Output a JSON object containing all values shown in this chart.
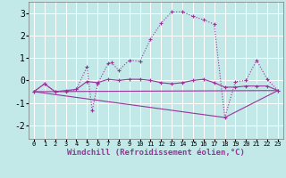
{
  "xlabel": "Windchill (Refroidissement éolien,°C)",
  "background_color": "#c2e8e8",
  "grid_color": "#ffffff",
  "line_color": "#993399",
  "xlim": [
    -0.5,
    23.5
  ],
  "ylim": [
    -2.6,
    3.5
  ],
  "yticks": [
    -2,
    -1,
    0,
    1,
    2,
    3
  ],
  "series1_x": [
    0,
    1,
    2,
    3,
    4,
    5,
    5.5,
    6,
    7,
    7.3,
    8,
    9,
    10,
    11,
    12,
    13,
    14,
    15,
    16,
    17,
    18,
    19,
    20,
    21,
    22,
    23
  ],
  "series1_y": [
    -0.5,
    -0.15,
    -0.5,
    -0.5,
    -0.4,
    0.6,
    -1.35,
    -0.15,
    0.75,
    0.8,
    0.45,
    0.9,
    0.85,
    1.85,
    2.55,
    3.05,
    3.05,
    2.85,
    2.7,
    2.5,
    -1.65,
    -0.05,
    0.0,
    0.9,
    0.05,
    -0.45
  ],
  "series2_x": [
    0,
    1,
    2,
    3,
    4,
    5,
    6,
    7,
    8,
    9,
    10,
    11,
    12,
    13,
    14,
    15,
    16,
    17,
    18,
    19,
    20,
    21,
    22,
    23
  ],
  "series2_y": [
    -0.5,
    -0.15,
    -0.5,
    -0.45,
    -0.4,
    -0.05,
    -0.1,
    0.05,
    0.0,
    0.05,
    0.05,
    0.0,
    -0.1,
    -0.15,
    -0.1,
    0.0,
    0.05,
    -0.1,
    -0.3,
    -0.3,
    -0.25,
    -0.25,
    -0.25,
    -0.45
  ],
  "series3_x": [
    0,
    23
  ],
  "series3_y": [
    -0.5,
    -0.45
  ],
  "series4_x": [
    0,
    18,
    23
  ],
  "series4_y": [
    -0.5,
    -1.65,
    -0.45
  ],
  "marker": "+",
  "line_width": 0.8
}
